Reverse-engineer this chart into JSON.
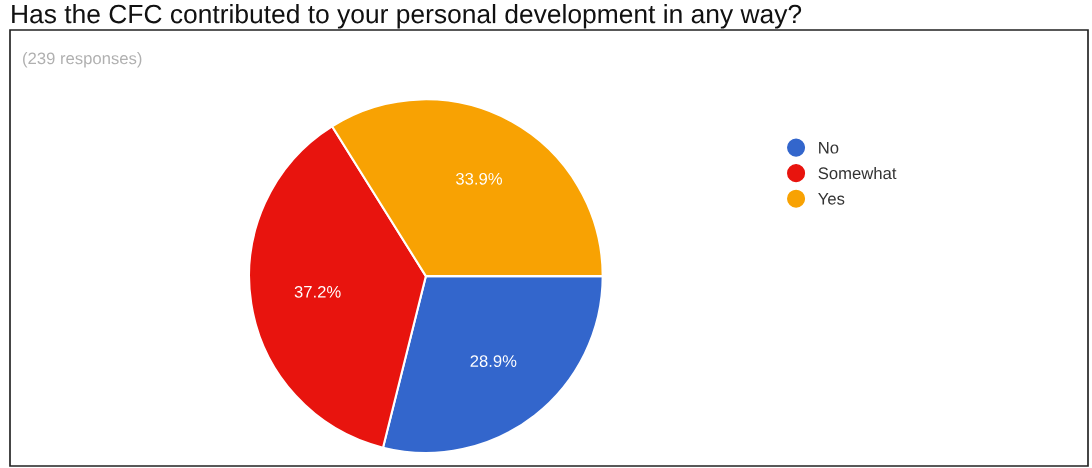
{
  "chart_data": {
    "type": "pie",
    "title": "Has the CFC contributed to your personal development in any way?",
    "subtitle": "(239 responses)",
    "categories": [
      "No",
      "Somewhat",
      "Yes"
    ],
    "values": [
      28.9,
      37.2,
      33.9
    ],
    "colors": [
      "#3366cc",
      "#e8140e",
      "#f8a203"
    ],
    "value_labels": [
      "28.9%",
      "37.2%",
      "33.9%"
    ],
    "legend": "top right"
  }
}
